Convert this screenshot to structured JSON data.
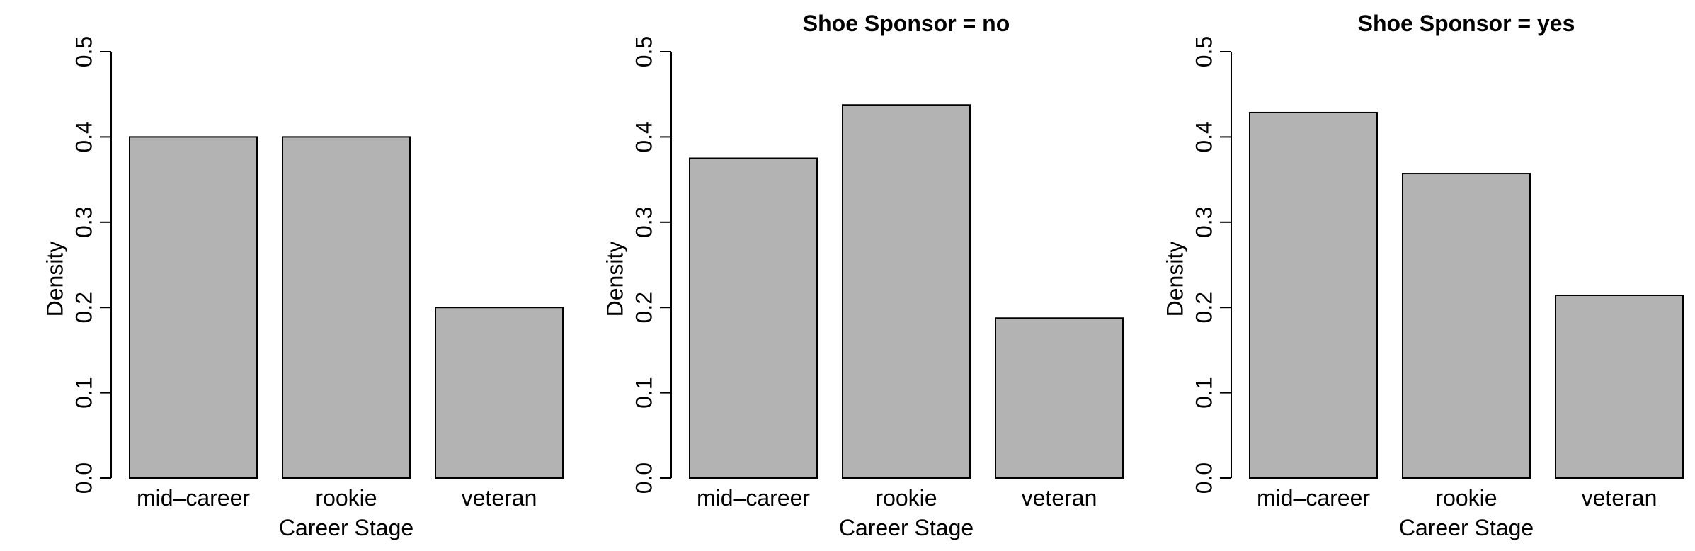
{
  "colors": {
    "bar_fill": "#b3b3b3",
    "bar_stroke": "#000000",
    "axis": "#000000",
    "background": "#ffffff"
  },
  "chart_data": [
    {
      "type": "bar",
      "title": "",
      "xlabel": "Career Stage",
      "ylabel": "Density",
      "categories": [
        "mid–career",
        "rookie",
        "veteran"
      ],
      "values": [
        0.4,
        0.4,
        0.2
      ],
      "ylim": [
        0,
        0.5
      ],
      "yticks": [
        "0.0",
        "0.1",
        "0.2",
        "0.3",
        "0.4",
        "0.5"
      ],
      "grid": false
    },
    {
      "type": "bar",
      "title": "Shoe Sponsor = no",
      "xlabel": "Career Stage",
      "ylabel": "Density",
      "categories": [
        "mid–career",
        "rookie",
        "veteran"
      ],
      "values": [
        0.375,
        0.4375,
        0.1875
      ],
      "ylim": [
        0,
        0.5
      ],
      "yticks": [
        "0.0",
        "0.1",
        "0.2",
        "0.3",
        "0.4",
        "0.5"
      ],
      "grid": false
    },
    {
      "type": "bar",
      "title": "Shoe Sponsor = yes",
      "xlabel": "Career Stage",
      "ylabel": "Density",
      "categories": [
        "mid–career",
        "rookie",
        "veteran"
      ],
      "values": [
        0.4286,
        0.3571,
        0.2143
      ],
      "ylim": [
        0,
        0.5
      ],
      "yticks": [
        "0.0",
        "0.1",
        "0.2",
        "0.3",
        "0.4",
        "0.5"
      ],
      "grid": false
    }
  ]
}
